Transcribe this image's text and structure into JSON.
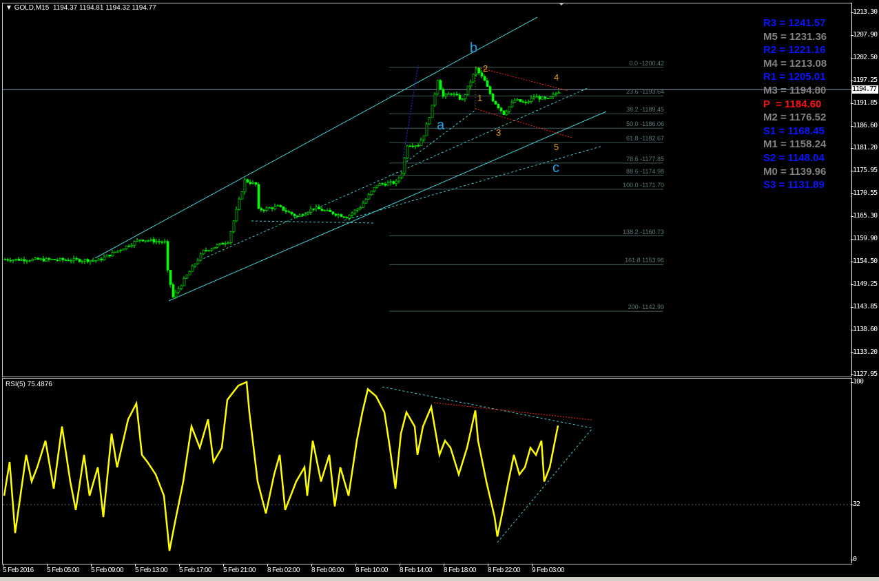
{
  "header": {
    "symbol": "GOLD,M15",
    "ohlc": "1194.37 1194.81 1194.32 1194.77",
    "current_price": "1194.77"
  },
  "price_axis": [
    "1213.30",
    "1207.90",
    "1202.50",
    "1197.25",
    "1191.85",
    "1186.60",
    "1181.20",
    "1175.95",
    "1170.55",
    "1165.30",
    "1159.90",
    "1154.50",
    "1149.25",
    "1143.85",
    "1138.60",
    "1133.20",
    "1127.95"
  ],
  "time_axis": [
    "5 Feb 2016",
    "5 Feb 05:00",
    "5 Feb 09:00",
    "5 Feb 13:00",
    "5 Feb 17:00",
    "5 Feb 21:00",
    "8 Feb 02:00",
    "8 Feb 06:00",
    "8 Feb 10:00",
    "8 Feb 14:00",
    "8 Feb 18:00",
    "8 Feb 22:00",
    "9 Feb 03:00"
  ],
  "pivots": [
    {
      "label": "R3 = 1241.57",
      "color": "#0a14ff"
    },
    {
      "label": "M5 = 1231.36",
      "color": "#808080"
    },
    {
      "label": "R2 = 1221.16",
      "color": "#0a14ff"
    },
    {
      "label": "M4 = 1213.08",
      "color": "#808080"
    },
    {
      "label": "R1 = 1205.01",
      "color": "#0a14ff"
    },
    {
      "label": "M3 = 1194.80",
      "color": "#808080"
    },
    {
      "label": "P  = 1184.60",
      "color": "#ff1010"
    },
    {
      "label": "M2 = 1176.52",
      "color": "#808080"
    },
    {
      "label": "S1 = 1168.45",
      "color": "#0a14ff"
    },
    {
      "label": "M1 = 1158.24",
      "color": "#808080"
    },
    {
      "label": "S2 = 1148.04",
      "color": "#0a14ff"
    },
    {
      "label": "M0 = 1139.96",
      "color": "#808080"
    },
    {
      "label": "S3 = 1131.89",
      "color": "#0a14ff"
    }
  ],
  "fibonacci": [
    {
      "label": "0.0 -1200.42",
      "price": 1200.42
    },
    {
      "label": "23.6 -1193.64",
      "price": 1193.64
    },
    {
      "label": "38.2 -1189.45",
      "price": 1189.45
    },
    {
      "label": "50.0 -1186.06",
      "price": 1186.06
    },
    {
      "label": "61.8 -1182.67",
      "price": 1182.67
    },
    {
      "label": "78.6 -1177.85",
      "price": 1177.85
    },
    {
      "label": "88.6 -1174.98",
      "price": 1174.98
    },
    {
      "label": "100.0 -1171.70",
      "price": 1171.7
    },
    {
      "label": "138.2  -1160.73",
      "price": 1160.73
    },
    {
      "label": "161.8 1153.96",
      "price": 1153.96
    },
    {
      "label": "200- 1142.99",
      "price": 1142.99
    }
  ],
  "waves": {
    "a": "a",
    "b": "b",
    "c": "c",
    "w1": "1",
    "w2": "2",
    "w3": "3",
    "w4": "4",
    "w5": "5"
  },
  "rsi": {
    "title": "RSI(5) 75.4876",
    "levels": [
      "100",
      "32",
      "0"
    ]
  },
  "colors": {
    "bull": "#00ff00",
    "bear": "#00ff00",
    "rsi_line": "#ffff00",
    "channel": "#40d0d0",
    "fib": "#5a7a78"
  },
  "chart_data": [
    {
      "type": "candlestick",
      "symbol": "GOLD,M15",
      "ylim": [
        1127.95,
        1213.3
      ],
      "price_path": [
        [
          0,
          1155.2
        ],
        [
          34,
          1155.0
        ],
        [
          49,
          1159.9
        ],
        [
          58,
          1159.2
        ],
        [
          59,
          1152.3
        ],
        [
          61,
          1146.3
        ],
        [
          66,
          1151.4
        ],
        [
          72,
          1157.1
        ],
        [
          81,
          1159.5
        ],
        [
          87,
          1173.8
        ],
        [
          91,
          1172.8
        ],
        [
          92,
          1166.8
        ],
        [
          99,
          1167.6
        ],
        [
          106,
          1165.2
        ],
        [
          112,
          1167.3
        ],
        [
          124,
          1165.2
        ],
        [
          129,
          1167.6
        ],
        [
          135,
          1172.8
        ],
        [
          142,
          1173.3
        ],
        [
          144,
          1175.7
        ],
        [
          146,
          1182.2
        ],
        [
          150,
          1182.2
        ],
        [
          152,
          1184.6
        ],
        [
          155,
          1191.1
        ],
        [
          157,
          1197.6
        ],
        [
          159,
          1193.5
        ],
        [
          162,
          1194.3
        ],
        [
          166,
          1192.7
        ],
        [
          171,
          1200.0
        ],
        [
          174,
          1197.1
        ],
        [
          177,
          1192.7
        ],
        [
          181,
          1189.5
        ],
        [
          185,
          1192.7
        ],
        [
          189,
          1191.9
        ],
        [
          192,
          1193.5
        ],
        [
          197,
          1192.7
        ],
        [
          201,
          1194.77
        ]
      ]
    },
    {
      "type": "line",
      "title": "RSI(5) 75.4876",
      "ylim": [
        0,
        100
      ],
      "levels": [
        32
      ],
      "values": [
        [
          0,
          36
        ],
        [
          2,
          55
        ],
        [
          4,
          15
        ],
        [
          8,
          59
        ],
        [
          10,
          44
        ],
        [
          12,
          52
        ],
        [
          15,
          67
        ],
        [
          18,
          40
        ],
        [
          21,
          75
        ],
        [
          24,
          44
        ],
        [
          26,
          28
        ],
        [
          29,
          59
        ],
        [
          31,
          36
        ],
        [
          34,
          52
        ],
        [
          36,
          24
        ],
        [
          39,
          71
        ],
        [
          41,
          52
        ],
        [
          45,
          79
        ],
        [
          48,
          88
        ],
        [
          50,
          59
        ],
        [
          52,
          55
        ],
        [
          55,
          48
        ],
        [
          58,
          36
        ],
        [
          60,
          5
        ],
        [
          62,
          21
        ],
        [
          65,
          44
        ],
        [
          68,
          75
        ],
        [
          71,
          63
        ],
        [
          74,
          79
        ],
        [
          76,
          55
        ],
        [
          79,
          63
        ],
        [
          81,
          90
        ],
        [
          85,
          98
        ],
        [
          88,
          100
        ],
        [
          89,
          83
        ],
        [
          92,
          44
        ],
        [
          95,
          26
        ],
        [
          98,
          48
        ],
        [
          100,
          59
        ],
        [
          102,
          28
        ],
        [
          106,
          44
        ],
        [
          109,
          52
        ],
        [
          110,
          36
        ],
        [
          112,
          67
        ],
        [
          115,
          44
        ],
        [
          118,
          59
        ],
        [
          120,
          30
        ],
        [
          122,
          52
        ],
        [
          125,
          36
        ],
        [
          128,
          67
        ],
        [
          130,
          83
        ],
        [
          132,
          96
        ],
        [
          135,
          92
        ],
        [
          138,
          83
        ],
        [
          140,
          63
        ],
        [
          142,
          40
        ],
        [
          144,
          71
        ],
        [
          146,
          83
        ],
        [
          149,
          75
        ],
        [
          150,
          59
        ],
        [
          152,
          75
        ],
        [
          155,
          86
        ],
        [
          158,
          59
        ],
        [
          160,
          67
        ],
        [
          162,
          63
        ],
        [
          165,
          48
        ],
        [
          168,
          63
        ],
        [
          171,
          84
        ],
        [
          172,
          67
        ],
        [
          175,
          44
        ],
        [
          178,
          24
        ],
        [
          179,
          13
        ],
        [
          181,
          28
        ],
        [
          183,
          44
        ],
        [
          185,
          59
        ],
        [
          187,
          48
        ],
        [
          189,
          52
        ],
        [
          191,
          63
        ],
        [
          193,
          59
        ],
        [
          195,
          67
        ],
        [
          196,
          44
        ],
        [
          198,
          52
        ],
        [
          201,
          75.49
        ]
      ]
    }
  ]
}
